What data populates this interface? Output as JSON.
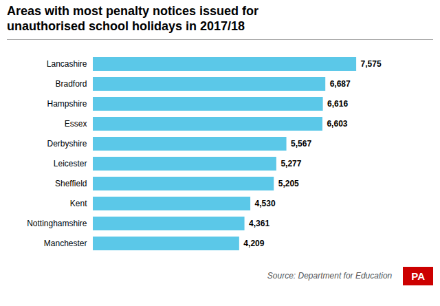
{
  "chart_data": {
    "type": "bar",
    "title": "Areas with most penalty notices issued for\nunauthorised school holidays in 2017/18",
    "orientation": "horizontal",
    "categories": [
      "Lancashire",
      "Bradford",
      "Hampshire",
      "Essex",
      "Derbyshire",
      "Leicester",
      "Sheffield",
      "Kent",
      "Nottinghamshire",
      "Manchester"
    ],
    "values": [
      7575,
      6687,
      6616,
      6603,
      5567,
      5277,
      5205,
      4530,
      4361,
      4209
    ],
    "value_labels": [
      "7,575",
      "6,687",
      "6,616",
      "6,603",
      "5,567",
      "5,277",
      "5,205",
      "4,530",
      "4,361",
      "4,209"
    ],
    "data_labels": true,
    "color": "#5BC8E8",
    "xlim": [
      0,
      8700
    ],
    "tick_labels": "y",
    "grid": false,
    "caption": "Source: Department for Education",
    "annotations": [
      {
        "text": "PA",
        "color": "#cc0000"
      }
    ]
  }
}
